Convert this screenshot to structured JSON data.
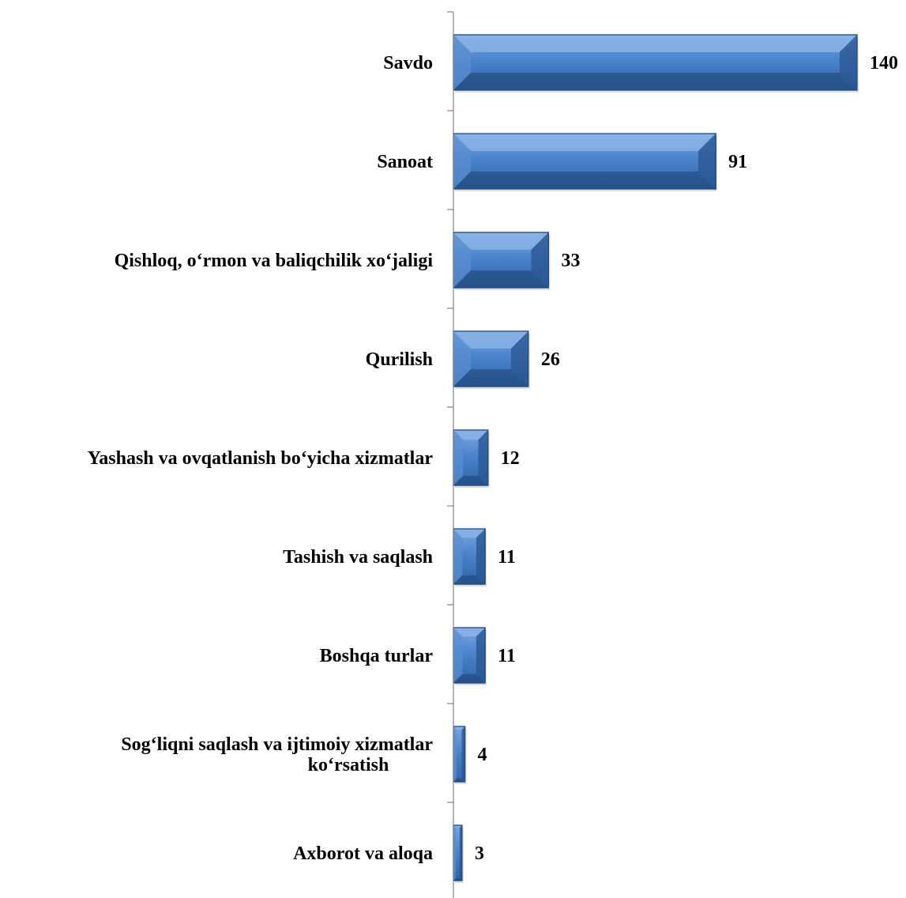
{
  "chart_data": {
    "type": "bar",
    "orientation": "horizontal",
    "categories": [
      "Savdo",
      "Sanoat",
      "Qishloq, o‘rmon va baliqchilik xo‘jaligi",
      "Qurilish",
      "Yashash va ovqatlanish bo‘yicha xizmatlar",
      "Tashish va saqlash",
      "Boshqa turlar",
      "Sog‘liqni saqlash va ijtimoiy xizmatlar ko‘rsatish",
      "Axborot va aloqa"
    ],
    "category_lines": [
      [
        "Savdo"
      ],
      [
        "Sanoat"
      ],
      [
        "Qishloq, o‘rmon va baliqchilik xo‘jaligi"
      ],
      [
        "Qurilish"
      ],
      [
        "Yashash va ovqatlanish bo‘yicha xizmatlar"
      ],
      [
        "Tashish va saqlash"
      ],
      [
        "Boshqa turlar"
      ],
      [
        "Sog‘liqni saqlash va ijtimoiy xizmatlar",
        "ko‘rsatish"
      ],
      [
        "Axborot va aloqa"
      ]
    ],
    "values": [
      140,
      91,
      33,
      26,
      12,
      11,
      11,
      4,
      3
    ],
    "data_labels": [
      "140",
      "91",
      "33",
      "26",
      "12",
      "11",
      "11",
      "4",
      "3"
    ],
    "xlim": [
      0,
      140
    ],
    "grid": false,
    "legend": "none",
    "bar_color": "#3f77bf",
    "bar_dark": "#244a7c",
    "bar_light": "#8db4e8",
    "axis_color": "#8c8c8c"
  }
}
